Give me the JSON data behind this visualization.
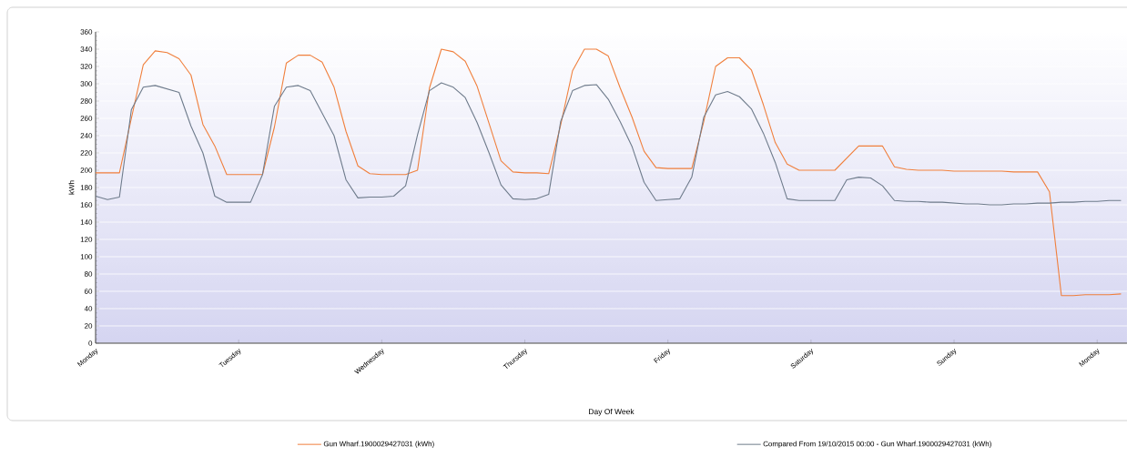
{
  "chart_data": {
    "type": "line",
    "xlabel": "Day Of Week",
    "ylabel": "kWh",
    "categories": [
      "Monday",
      null,
      null,
      null,
      null,
      null,
      null,
      null,
      null,
      null,
      null,
      null,
      "Tuesday",
      null,
      null,
      null,
      null,
      null,
      null,
      null,
      null,
      null,
      null,
      null,
      "Wednesday",
      null,
      null,
      null,
      null,
      null,
      null,
      null,
      null,
      null,
      null,
      null,
      "Thursday",
      null,
      null,
      null,
      null,
      null,
      null,
      null,
      null,
      null,
      null,
      null,
      "Friday",
      null,
      null,
      null,
      null,
      null,
      null,
      null,
      null,
      null,
      null,
      null,
      "Saturday",
      null,
      null,
      null,
      null,
      null,
      null,
      null,
      null,
      null,
      null,
      null,
      "Sunday",
      null,
      null,
      null,
      null,
      null,
      null,
      null,
      null,
      null,
      null,
      null,
      "Monday",
      null,
      null
    ],
    "ylim": [
      0,
      360
    ],
    "yticks": [
      0,
      20,
      40,
      60,
      80,
      100,
      120,
      140,
      160,
      180,
      200,
      220,
      240,
      260,
      280,
      300,
      320,
      340,
      360
    ],
    "grid": "y",
    "legend": "bottom",
    "series": [
      {
        "name": "Gun Wharf.1900029427031 (kWh)",
        "color": "#f07f3c",
        "values": [
          197,
          197,
          197,
          260,
          322,
          338,
          336,
          329,
          310,
          253,
          228,
          195,
          195,
          195,
          195,
          250,
          324,
          333,
          333,
          325,
          296,
          245,
          205,
          196,
          195,
          195,
          195,
          200,
          295,
          340,
          337,
          326,
          297,
          254,
          211,
          198,
          197,
          197,
          196,
          252,
          315,
          340,
          340,
          332,
          295,
          261,
          222,
          203,
          202,
          202,
          202,
          256,
          320,
          330,
          330,
          316,
          276,
          232,
          207,
          200,
          200,
          200,
          200,
          214,
          228,
          228,
          228,
          204,
          201,
          200,
          200,
          200,
          199,
          199,
          199,
          199,
          199,
          198,
          198,
          198,
          175,
          55,
          55,
          56,
          56,
          56,
          57
        ]
      },
      {
        "name": "Compared From 19/10/2015 00:00 - Gun Wharf.1900029427031 (kWh)",
        "color": "#6e7b8b",
        "values": [
          170,
          166,
          169,
          270,
          296,
          298,
          294,
          290,
          251,
          220,
          170,
          163,
          163,
          163,
          195,
          274,
          296,
          298,
          292,
          266,
          240,
          189,
          168,
          169,
          169,
          170,
          182,
          241,
          292,
          301,
          296,
          284,
          255,
          220,
          183,
          167,
          166,
          167,
          172,
          256,
          292,
          298,
          299,
          282,
          256,
          227,
          186,
          165,
          166,
          167,
          192,
          261,
          287,
          291,
          285,
          271,
          243,
          209,
          167,
          165,
          165,
          165,
          165,
          189,
          192,
          191,
          182,
          165,
          164,
          164,
          163,
          163,
          162,
          161,
          161,
          160,
          160,
          161,
          161,
          162,
          162,
          163,
          163,
          164,
          164,
          165,
          165
        ]
      }
    ]
  }
}
